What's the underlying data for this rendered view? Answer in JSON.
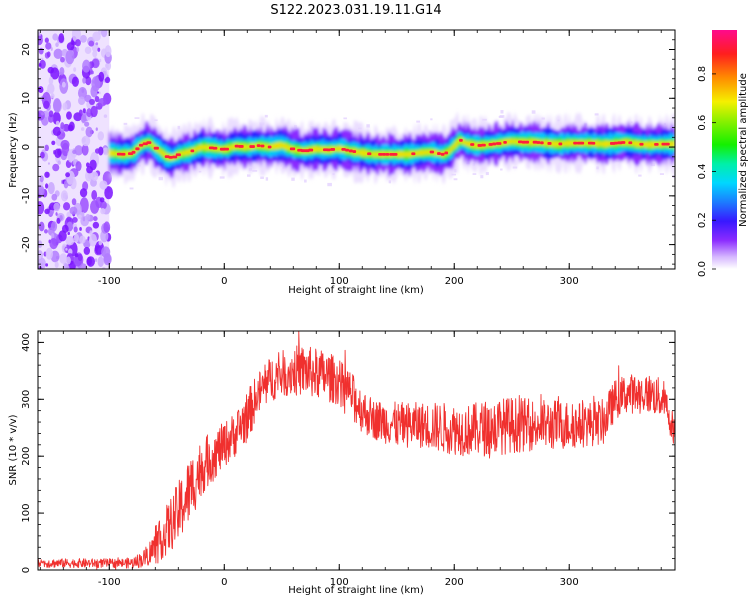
{
  "title": "S122.2023.031.19.11.G14",
  "chart_data": [
    {
      "type": "heatmap",
      "xlabel": "Height of straight line (km)",
      "ylabel": "Frequency (Hz)",
      "xlim": [
        -162,
        392
      ],
      "ylim": [
        -25,
        24
      ],
      "xticks": [
        -100,
        0,
        100,
        200,
        300
      ],
      "yticks": [
        20,
        10,
        0,
        -10,
        -20
      ],
      "colorbar": {
        "label": "Normalized spectral amplitude",
        "ticks": [
          "0.0",
          "0.2",
          "0.4",
          "0.6",
          "0.8"
        ],
        "tick_values": [
          0.0,
          0.2,
          0.4,
          0.6,
          0.8
        ],
        "range": [
          0,
          0.98
        ]
      },
      "noise_region_x": [
        -162,
        -100
      ],
      "ridge": {
        "x": [
          -100,
          -90,
          -80,
          -72,
          -65,
          -60,
          -55,
          -50,
          -45,
          -40,
          -30,
          -20,
          -10,
          0,
          10,
          20,
          30,
          40,
          50,
          60,
          70,
          80,
          90,
          100,
          110,
          120,
          130,
          140,
          150,
          160,
          170,
          180,
          190,
          195,
          200,
          205,
          210,
          220,
          230,
          240,
          250,
          260,
          270,
          280,
          290,
          300,
          310,
          320,
          330,
          340,
          350,
          360,
          370,
          380,
          392
        ],
        "freq": [
          -1.2,
          -1.5,
          -1.3,
          0.5,
          1.0,
          -0.2,
          -1.0,
          -2.0,
          -2.2,
          -1.5,
          -1.0,
          0.0,
          -0.2,
          -0.5,
          0.2,
          0.0,
          0.3,
          0.0,
          0.4,
          -0.5,
          -0.8,
          -0.4,
          -0.6,
          -0.3,
          -0.8,
          -1.2,
          -1.5,
          -1.5,
          -1.5,
          -1.5,
          -1.2,
          -1.0,
          -1.5,
          -1.0,
          0.2,
          1.5,
          0.8,
          0.3,
          0.5,
          0.8,
          1.2,
          1.0,
          1.0,
          0.8,
          0.6,
          0.8,
          0.8,
          0.8,
          0.6,
          0.8,
          1.0,
          0.6,
          0.5,
          0.6,
          0.6
        ]
      }
    },
    {
      "type": "line",
      "xlabel": "Height of straight line (km)",
      "ylabel": "SNR (10 * v/v)",
      "xlim": [
        -162,
        392
      ],
      "ylim": [
        0,
        420
      ],
      "xticks": [
        -100,
        0,
        100,
        200,
        300
      ],
      "yticks": [
        0,
        100,
        200,
        300,
        400
      ],
      "series": [
        {
          "color": "#f0302e",
          "x": [
            -162,
            -140,
            -120,
            -100,
            -90,
            -80,
            -70,
            -60,
            -50,
            -40,
            -30,
            -20,
            -10,
            0,
            10,
            20,
            30,
            40,
            50,
            60,
            70,
            80,
            90,
            100,
            110,
            120,
            130,
            150,
            170,
            190,
            210,
            230,
            250,
            270,
            290,
            310,
            330,
            340,
            350,
            370,
            382,
            392
          ],
          "mean": [
            12,
            12,
            12,
            12,
            12,
            12,
            20,
            40,
            70,
            100,
            140,
            180,
            200,
            220,
            240,
            270,
            310,
            335,
            345,
            350,
            350,
            345,
            340,
            330,
            310,
            280,
            265,
            255,
            255,
            250,
            245,
            250,
            255,
            255,
            255,
            255,
            260,
            300,
            310,
            310,
            300,
            240
          ],
          "amp": [
            8,
            8,
            8,
            8,
            8,
            10,
            15,
            30,
            45,
            55,
            60,
            50,
            45,
            40,
            40,
            45,
            40,
            40,
            40,
            45,
            45,
            45,
            45,
            40,
            40,
            40,
            35,
            40,
            40,
            45,
            45,
            50,
            50,
            45,
            45,
            40,
            40,
            35,
            35,
            35,
            35,
            25
          ]
        }
      ]
    }
  ]
}
